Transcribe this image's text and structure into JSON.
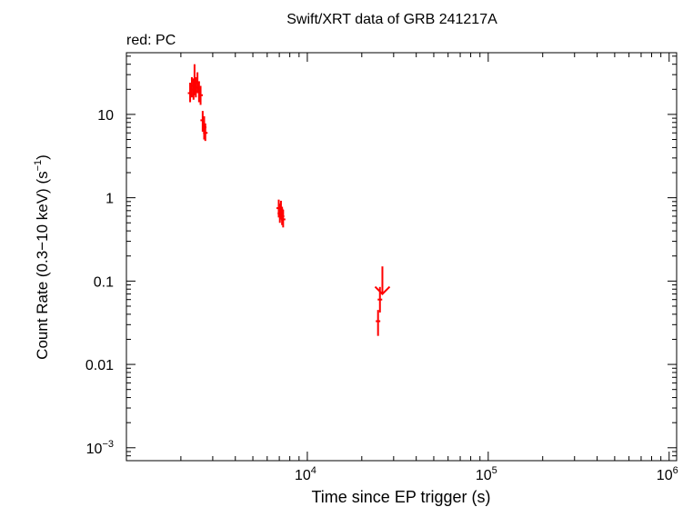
{
  "chart_data": {
    "type": "scatter",
    "title": "Swift/XRT data of GRB 241217A",
    "subtitle": "red: PC",
    "xlabel": "Time since EP trigger (s)",
    "ylabel_main": "Count Rate (0.3−10 keV) (s",
    "ylabel_exp": "−1",
    "ylabel_close": ")",
    "x_scale": "log",
    "y_scale": "log",
    "xlim": [
      1000,
      1100000
    ],
    "ylim": [
      0.0007,
      55
    ],
    "grid": false,
    "series_color": "#ff0000",
    "x_ticks": [
      {
        "value": 10000,
        "base": "10",
        "exp": "4"
      },
      {
        "value": 100000,
        "base": "10",
        "exp": "5"
      },
      {
        "value": 1000000,
        "base": "10",
        "exp": "6"
      }
    ],
    "y_ticks": [
      {
        "value": 10,
        "label": "10"
      },
      {
        "value": 1,
        "label": "1"
      },
      {
        "value": 0.1,
        "label": "0.1"
      },
      {
        "value": 0.01,
        "label": "0.01"
      },
      {
        "value": 0.001,
        "label": "10",
        "exp": "−3"
      }
    ],
    "series": [
      {
        "points": [
          {
            "x": 2250,
            "y": 18,
            "ylo": 14,
            "yhi": 24
          },
          {
            "x": 2300,
            "y": 22,
            "ylo": 16,
            "yhi": 28
          },
          {
            "x": 2350,
            "y": 20,
            "ylo": 15,
            "yhi": 27
          },
          {
            "x": 2380,
            "y": 25,
            "ylo": 17,
            "yhi": 40
          },
          {
            "x": 2420,
            "y": 21,
            "ylo": 16,
            "yhi": 28
          },
          {
            "x": 2470,
            "y": 24,
            "ylo": 18,
            "yhi": 32
          },
          {
            "x": 2520,
            "y": 19,
            "ylo": 14,
            "yhi": 25
          },
          {
            "x": 2570,
            "y": 17,
            "ylo": 13,
            "yhi": 22
          },
          {
            "x": 2640,
            "y": 8.5,
            "ylo": 6.2,
            "yhi": 11
          },
          {
            "x": 2690,
            "y": 7.0,
            "ylo": 5.0,
            "yhi": 9.5
          },
          {
            "x": 2730,
            "y": 6.0,
            "ylo": 4.8,
            "yhi": 7.8
          },
          {
            "x": 6950,
            "y": 0.75,
            "ylo": 0.58,
            "yhi": 0.95
          },
          {
            "x": 7050,
            "y": 0.65,
            "ylo": 0.5,
            "yhi": 0.85
          },
          {
            "x": 7150,
            "y": 0.72,
            "ylo": 0.55,
            "yhi": 0.92
          },
          {
            "x": 7250,
            "y": 0.6,
            "ylo": 0.47,
            "yhi": 0.78
          },
          {
            "x": 7350,
            "y": 0.55,
            "ylo": 0.44,
            "yhi": 0.72
          },
          {
            "x": 24600,
            "y": 0.033,
            "ylo": 0.022,
            "yhi": 0.045
          },
          {
            "x": 25200,
            "y": 0.06,
            "ylo": 0.042,
            "yhi": 0.085
          }
        ],
        "upper_limits": [
          {
            "x": 26000,
            "y": 0.07,
            "yhi": 0.15
          }
        ]
      }
    ]
  }
}
